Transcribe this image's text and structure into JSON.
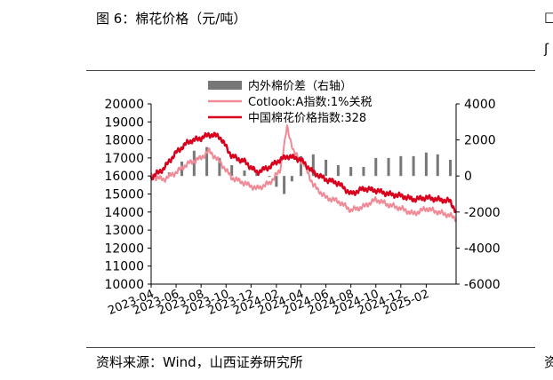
{
  "figure": {
    "title": "图 6：棉花价格（元/吨）",
    "source": "资料来源：Wind，山西证券研究所",
    "edge_text": [
      "□",
      "ʃ",
      "资"
    ]
  },
  "chart_data": {
    "type": "line",
    "title": "",
    "x_ticks": [
      "2023-04",
      "2023-06",
      "2023-08",
      "2023-10",
      "2023-12",
      "2024-02",
      "2024-04",
      "2024-06",
      "2024-08",
      "2024-10",
      "2024-12",
      "2025-02"
    ],
    "x_range": [
      "2023-04-01",
      "2025-04-15"
    ],
    "y_left": {
      "range": [
        10000,
        20000
      ],
      "ticks": [
        10000,
        11000,
        12000,
        13000,
        14000,
        15000,
        16000,
        17000,
        18000,
        19000,
        20000
      ]
    },
    "y_right": {
      "range": [
        -6000,
        4000
      ],
      "ticks": [
        -6000,
        -4000,
        -2000,
        0,
        2000,
        4000
      ],
      "tick_labels": [
        "-6000",
        "-4000",
        "-2000",
        "0",
        "2000",
        "4000"
      ]
    },
    "legend": {
      "placement": "top-center"
    },
    "series": [
      {
        "name": "内外棉价差（右轴）",
        "type": "bar",
        "axis": "right",
        "color": "#777777",
        "points": [
          [
            "2023-04-01",
            0
          ],
          [
            "2023-05-15",
            200
          ],
          [
            "2023-06-15",
            800
          ],
          [
            "2023-07-15",
            1400
          ],
          [
            "2023-08-15",
            1600
          ],
          [
            "2023-09-15",
            1000
          ],
          [
            "2023-10-15",
            600
          ],
          [
            "2023-11-15",
            300
          ],
          [
            "2023-12-15",
            200
          ],
          [
            "2024-01-15",
            0
          ],
          [
            "2024-02-01",
            -600
          ],
          [
            "2024-02-20",
            -1000
          ],
          [
            "2024-03-10",
            -300
          ],
          [
            "2024-04-01",
            1100
          ],
          [
            "2024-05-01",
            1200
          ],
          [
            "2024-06-01",
            900
          ],
          [
            "2024-07-01",
            600
          ],
          [
            "2024-08-01",
            500
          ],
          [
            "2024-09-01",
            500
          ],
          [
            "2024-10-01",
            1000
          ],
          [
            "2024-11-01",
            1000
          ],
          [
            "2024-12-01",
            1100
          ],
          [
            "2025-01-01",
            1100
          ],
          [
            "2025-02-01",
            1300
          ],
          [
            "2025-03-01",
            1200
          ],
          [
            "2025-04-01",
            900
          ]
        ]
      },
      {
        "name": "Cotlook:A指数:1%关税",
        "type": "line",
        "axis": "left",
        "color": "#f08a96",
        "points": [
          [
            "2023-04-01",
            16000
          ],
          [
            "2023-05-01",
            15800
          ],
          [
            "2023-06-01",
            16200
          ],
          [
            "2023-07-01",
            16700
          ],
          [
            "2023-08-01",
            17000
          ],
          [
            "2023-08-20",
            17400
          ],
          [
            "2023-09-15",
            16800
          ],
          [
            "2023-10-15",
            15900
          ],
          [
            "2023-11-15",
            15600
          ],
          [
            "2023-12-15",
            15300
          ],
          [
            "2024-01-15",
            15600
          ],
          [
            "2024-02-10",
            16300
          ],
          [
            "2024-02-27",
            18700
          ],
          [
            "2024-03-15",
            17300
          ],
          [
            "2024-04-10",
            16600
          ],
          [
            "2024-05-01",
            15500
          ],
          [
            "2024-06-01",
            14800
          ],
          [
            "2024-07-01",
            14600
          ],
          [
            "2024-08-01",
            14100
          ],
          [
            "2024-09-01",
            14300
          ],
          [
            "2024-10-01",
            14700
          ],
          [
            "2024-11-01",
            14400
          ],
          [
            "2024-12-01",
            14200
          ],
          [
            "2025-01-01",
            13900
          ],
          [
            "2025-02-01",
            14200
          ],
          [
            "2025-03-01",
            14000
          ],
          [
            "2025-04-01",
            13800
          ],
          [
            "2025-04-15",
            13600
          ]
        ]
      },
      {
        "name": "中国棉花价格指数:328",
        "type": "line",
        "axis": "left",
        "color": "#d8001c",
        "points": [
          [
            "2023-04-01",
            15900
          ],
          [
            "2023-05-01",
            16400
          ],
          [
            "2023-06-01",
            17300
          ],
          [
            "2023-07-01",
            17900
          ],
          [
            "2023-08-01",
            18100
          ],
          [
            "2023-08-20",
            18300
          ],
          [
            "2023-09-15",
            18200
          ],
          [
            "2023-10-15",
            17100
          ],
          [
            "2023-11-15",
            16800
          ],
          [
            "2023-12-15",
            16200
          ],
          [
            "2024-01-15",
            16500
          ],
          [
            "2024-02-10",
            16900
          ],
          [
            "2024-03-01",
            17100
          ],
          [
            "2024-04-01",
            16900
          ],
          [
            "2024-05-01",
            16200
          ],
          [
            "2024-06-01",
            15800
          ],
          [
            "2024-07-01",
            15600
          ],
          [
            "2024-08-01",
            15000
          ],
          [
            "2024-09-01",
            15300
          ],
          [
            "2024-10-01",
            15200
          ],
          [
            "2024-11-01",
            15000
          ],
          [
            "2024-12-01",
            14900
          ],
          [
            "2025-01-01",
            14700
          ],
          [
            "2025-02-01",
            14800
          ],
          [
            "2025-03-01",
            14700
          ],
          [
            "2025-04-01",
            14600
          ],
          [
            "2025-04-15",
            14000
          ]
        ]
      }
    ]
  }
}
